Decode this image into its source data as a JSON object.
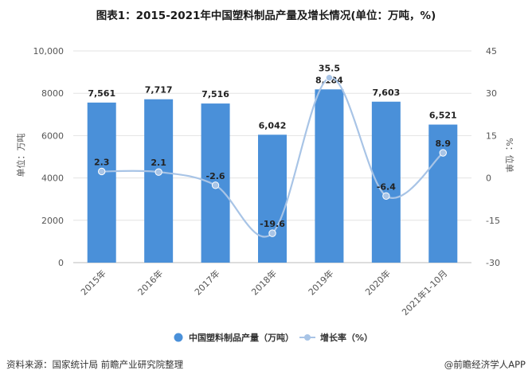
{
  "chart_data": {
    "type": "bar",
    "title": "图表1：2015-2021年中国塑料制品产量及增长情况(单位：万吨，%)",
    "categories": [
      "2015年",
      "2016年",
      "2017年",
      "2018年",
      "2019年",
      "2020年",
      "2021年1-10月"
    ],
    "series": [
      {
        "name": "中国塑料制品产量（万吨）",
        "type": "bar",
        "axis": "left",
        "color": "#4a90d9",
        "values": [
          7561,
          7717,
          7516,
          6042,
          8184,
          7603,
          6521
        ],
        "labels": [
          "7,561",
          "7,717",
          "7,516",
          "6,042",
          "8,184",
          "7,603",
          "6,521"
        ]
      },
      {
        "name": "增长率（%）",
        "type": "line",
        "axis": "right",
        "color": "#a8c4e6",
        "values": [
          2.3,
          2.1,
          -2.6,
          -19.6,
          35.5,
          -6.4,
          8.9
        ],
        "labels": [
          "2.3",
          "2.1",
          "-2.6",
          "-19.6",
          "35.5",
          "-6.4",
          "8.9"
        ]
      }
    ],
    "ylabel": "单位：万吨",
    "y2label": "%：位单",
    "ylim": [
      0,
      10000
    ],
    "y2lim": [
      -30,
      45
    ],
    "yticks": [
      "0",
      "2000",
      "4000",
      "6000",
      "8000",
      "10,000"
    ],
    "y2ticks": [
      "-30",
      "-15",
      "0",
      "15",
      "30",
      "45"
    ],
    "grid": true,
    "legend": "bottom"
  },
  "footer": {
    "source": "资料来源：国家统计局 前瞻产业研究院整理",
    "brand": "@前瞻经济学人APP"
  }
}
